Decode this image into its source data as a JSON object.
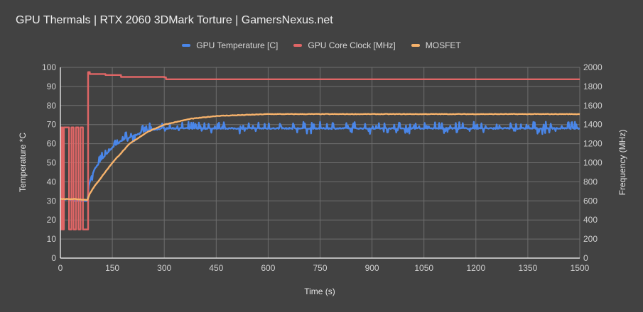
{
  "chart_data": {
    "type": "line",
    "title": "GPU Thermals | RTX 2060 3DMark Torture | GamersNexus.net",
    "xlabel": "Time (s)",
    "ylabel": "Temperature *C",
    "y2label": "Frequency (MHz)",
    "xlim": [
      0,
      1500
    ],
    "ylim": [
      0,
      100
    ],
    "y2lim": [
      0,
      2000
    ],
    "x_ticks": [
      "0",
      "150",
      "300",
      "450",
      "600",
      "750",
      "900",
      "1050",
      "1200",
      "1350",
      "1500"
    ],
    "y_ticks": [
      "0",
      "10",
      "20",
      "30",
      "40",
      "50",
      "60",
      "70",
      "80",
      "90",
      "100"
    ],
    "y2_ticks": [
      "0",
      "200",
      "400",
      "600",
      "800",
      "1000",
      "1200",
      "1400",
      "1600",
      "1800",
      "2000"
    ],
    "grid": true,
    "legend_position": "top",
    "series": [
      {
        "name": "GPU Temperature [C]",
        "axis": "left",
        "color": "#4a86e8",
        "x": [
          0,
          20,
          40,
          60,
          78,
          82,
          90,
          100,
          120,
          150,
          180,
          225,
          250,
          300,
          450,
          600,
          750,
          900,
          1050,
          1200,
          1350,
          1500
        ],
        "values": [
          30,
          31,
          30,
          30,
          30,
          38,
          43,
          47,
          52,
          58,
          62,
          65,
          67,
          68,
          68,
          68,
          68,
          68,
          68,
          68,
          68,
          68
        ]
      },
      {
        "name": "GPU Core Clock [MHz]",
        "axis": "right",
        "color": "#e06666",
        "x": [
          0,
          3,
          6,
          10,
          18,
          25,
          32,
          38,
          45,
          52,
          58,
          65,
          78,
          80,
          85,
          100,
          130,
          175,
          300,
          305,
          450,
          600,
          750,
          900,
          1050,
          1200,
          1350,
          1500
        ],
        "values": [
          300,
          1370,
          300,
          1370,
          1370,
          300,
          1370,
          300,
          1370,
          300,
          1370,
          300,
          300,
          1950,
          1930,
          1930,
          1920,
          1900,
          1895,
          1875,
          1875,
          1875,
          1875,
          1875,
          1875,
          1875,
          1875,
          1875
        ]
      },
      {
        "name": "MOSFET",
        "axis": "left",
        "color": "#f6b26b",
        "x": [
          0,
          40,
          78,
          85,
          100,
          150,
          200,
          250,
          300,
          375,
          450,
          600,
          750,
          900,
          1050,
          1200,
          1350,
          1500
        ],
        "values": [
          31,
          31,
          30.5,
          34,
          38,
          50,
          60,
          66,
          70,
          73,
          74.5,
          75.5,
          75.5,
          75.5,
          75.5,
          75.5,
          75.5,
          75.5
        ]
      }
    ]
  },
  "header": {
    "title": "GPU Thermals | RTX 2060 3DMark Torture | GamersNexus.net"
  },
  "legend": {
    "items": [
      {
        "label": "GPU Temperature [C]",
        "color": "#4a86e8"
      },
      {
        "label": "GPU Core Clock [MHz]",
        "color": "#e06666"
      },
      {
        "label": "MOSFET",
        "color": "#f6b26b"
      }
    ]
  },
  "axes": {
    "x_title": "Time (s)",
    "y_title": "Temperature *C",
    "y2_title": "Frequency (MHz)"
  }
}
